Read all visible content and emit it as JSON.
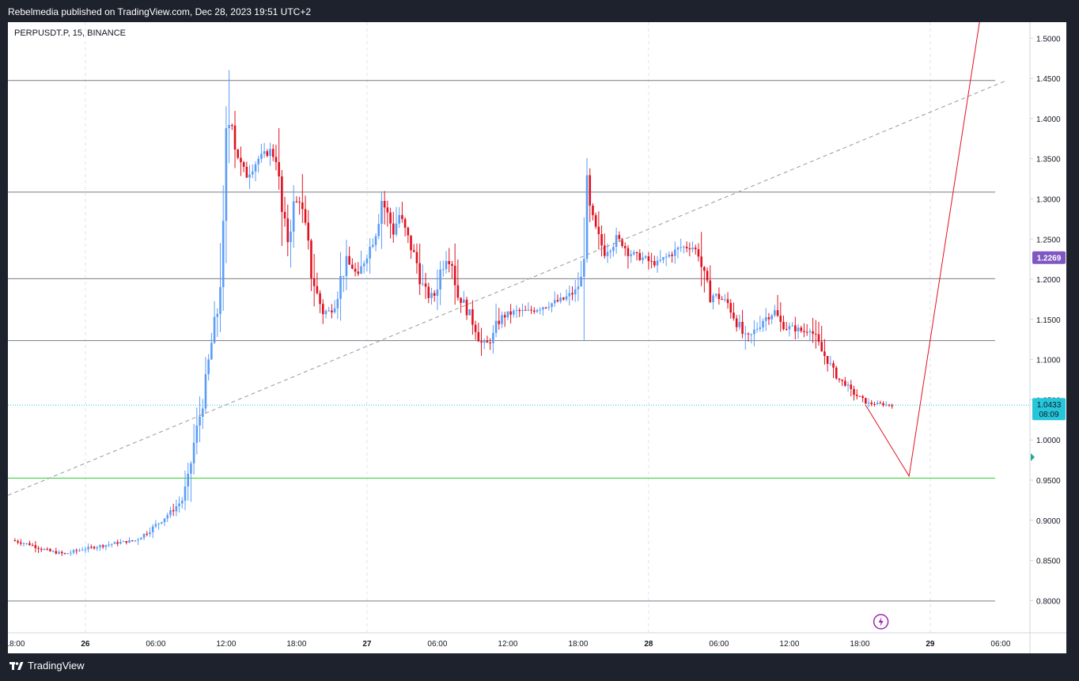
{
  "header": {
    "publisher_text": "Rebelmedia published on TradingView.com, Dec 28, 2023 19:51 UTC+2"
  },
  "footer": {
    "brand": "TradingView",
    "logo_icon": "tradingview-logo-icon"
  },
  "colors": {
    "bull": "#5b9cf6",
    "bear": "#e0111f",
    "line": "#787b86",
    "support": "#2fcf2f",
    "projection": "#e0111f",
    "price_badge": "#26c6da",
    "high_badge": "#7e57c2"
  },
  "chart_data": {
    "type": "candlestick",
    "symbol_label": "PERPUSDT.P, 15, BINANCE",
    "ylim": [
      0.76,
      1.52
    ],
    "y_ticks": [
      "0.8000",
      "0.8500",
      "0.9000",
      "0.9500",
      "1.0000",
      "1.0500",
      "1.1000",
      "1.1500",
      "1.2000",
      "1.2500",
      "1.3000",
      "1.3500",
      "1.4000",
      "1.4500",
      "1.5000"
    ],
    "x_ticks": [
      {
        "label": "18:00",
        "t": 0
      },
      {
        "label": "26",
        "t": 6
      },
      {
        "label": "06:00",
        "t": 12
      },
      {
        "label": "12:00",
        "t": 18
      },
      {
        "label": "18:00",
        "t": 24
      },
      {
        "label": "27",
        "t": 30
      },
      {
        "label": "06:00",
        "t": 36
      },
      {
        "label": "12:00",
        "t": 42
      },
      {
        "label": "18:00",
        "t": 48
      },
      {
        "label": "28",
        "t": 54
      },
      {
        "label": "06:00",
        "t": 60
      },
      {
        "label": "12:00",
        "t": 66
      },
      {
        "label": "18:00",
        "t": 72
      },
      {
        "label": "29",
        "t": 78
      },
      {
        "label": "06:00",
        "t": 84
      }
    ],
    "x_range_hours": [
      -0.6,
      86.5
    ],
    "last_time_hours": 74.8,
    "anchor_points": [
      [
        0,
        0.875
      ],
      [
        1.5,
        0.87
      ],
      [
        3,
        0.862
      ],
      [
        4.5,
        0.858
      ],
      [
        6,
        0.864
      ],
      [
        7.5,
        0.868
      ],
      [
        9,
        0.872
      ],
      [
        10.5,
        0.875
      ],
      [
        11.5,
        0.885
      ],
      [
        12.5,
        0.897
      ],
      [
        13.5,
        0.91
      ],
      [
        14.5,
        0.925
      ],
      [
        15,
        0.95
      ],
      [
        15.5,
        0.995
      ],
      [
        16,
        1.03
      ],
      [
        16.5,
        1.07
      ],
      [
        17,
        1.12
      ],
      [
        17.5,
        1.16
      ],
      [
        18,
        1.25
      ],
      [
        18.3,
        1.37
      ],
      [
        18.6,
        1.41
      ],
      [
        19,
        1.37
      ],
      [
        19.5,
        1.34
      ],
      [
        20,
        1.33
      ],
      [
        21,
        1.35
      ],
      [
        22,
        1.36
      ],
      [
        22.5,
        1.35
      ],
      [
        23,
        1.28
      ],
      [
        23.5,
        1.25
      ],
      [
        24,
        1.29
      ],
      [
        24.5,
        1.3
      ],
      [
        25,
        1.26
      ],
      [
        25.5,
        1.21
      ],
      [
        26,
        1.18
      ],
      [
        26.5,
        1.16
      ],
      [
        27,
        1.16
      ],
      [
        27.5,
        1.17
      ],
      [
        28,
        1.2
      ],
      [
        28.5,
        1.22
      ],
      [
        29,
        1.215
      ],
      [
        29.5,
        1.2
      ],
      [
        30,
        1.225
      ],
      [
        30.5,
        1.24
      ],
      [
        31,
        1.26
      ],
      [
        31.5,
        1.3
      ],
      [
        32,
        1.28
      ],
      [
        32.5,
        1.26
      ],
      [
        33,
        1.28
      ],
      [
        33.5,
        1.26
      ],
      [
        34,
        1.24
      ],
      [
        34.5,
        1.22
      ],
      [
        35,
        1.19
      ],
      [
        35.5,
        1.18
      ],
      [
        36,
        1.18
      ],
      [
        36.5,
        1.21
      ],
      [
        37,
        1.23
      ],
      [
        37.5,
        1.22
      ],
      [
        38,
        1.18
      ],
      [
        38.5,
        1.17
      ],
      [
        39,
        1.155
      ],
      [
        39.5,
        1.14
      ],
      [
        40,
        1.12
      ],
      [
        40.5,
        1.12
      ],
      [
        41,
        1.13
      ],
      [
        41.5,
        1.15
      ],
      [
        42,
        1.155
      ],
      [
        43,
        1.16
      ],
      [
        44,
        1.16
      ],
      [
        45,
        1.165
      ],
      [
        46,
        1.17
      ],
      [
        47,
        1.175
      ],
      [
        48,
        1.185
      ],
      [
        48.5,
        1.2
      ],
      [
        49,
        1.3
      ],
      [
        49.5,
        1.27
      ],
      [
        50,
        1.25
      ],
      [
        50.5,
        1.235
      ],
      [
        51,
        1.24
      ],
      [
        51.5,
        1.25
      ],
      [
        52,
        1.245
      ],
      [
        52.5,
        1.235
      ],
      [
        53,
        1.23
      ],
      [
        54,
        1.225
      ],
      [
        54.5,
        1.22
      ],
      [
        55,
        1.22
      ],
      [
        56,
        1.23
      ],
      [
        57,
        1.24
      ],
      [
        58,
        1.24
      ],
      [
        58.5,
        1.232
      ],
      [
        59,
        1.2
      ],
      [
        59.5,
        1.18
      ],
      [
        60,
        1.18
      ],
      [
        61,
        1.17
      ],
      [
        61.5,
        1.155
      ],
      [
        62,
        1.14
      ],
      [
        62.5,
        1.125
      ],
      [
        63,
        1.13
      ],
      [
        63.5,
        1.14
      ],
      [
        64,
        1.15
      ],
      [
        64.5,
        1.155
      ],
      [
        65,
        1.16
      ],
      [
        65.5,
        1.145
      ],
      [
        66,
        1.14
      ],
      [
        66.5,
        1.14
      ],
      [
        67,
        1.137
      ],
      [
        67.5,
        1.135
      ],
      [
        68,
        1.14
      ],
      [
        68.5,
        1.125
      ],
      [
        69,
        1.11
      ],
      [
        69.5,
        1.1
      ],
      [
        70,
        1.085
      ],
      [
        70.5,
        1.075
      ],
      [
        71,
        1.07
      ],
      [
        71.5,
        1.06
      ],
      [
        72,
        1.055
      ],
      [
        72.5,
        1.05
      ],
      [
        73,
        1.045
      ],
      [
        73.5,
        1.045
      ],
      [
        74,
        1.045
      ],
      [
        74.8,
        1.0433
      ]
    ],
    "price_lines": [
      1.4474,
      1.3085,
      1.2007,
      1.1236,
      0.7995
    ],
    "support_level": 0.9525,
    "last_price": {
      "value": 1.0433,
      "label": "1.0433",
      "countdown": "08:09"
    },
    "high_marker": {
      "value": 1.2269,
      "label": "1.2269"
    },
    "trendline": {
      "from": [
        -0.6,
        0.931
      ],
      "to": [
        84.5,
        1.4474
      ]
    },
    "projection": [
      [
        72.5,
        1.0433
      ],
      [
        76.2,
        0.955
      ],
      [
        82.2,
        1.52
      ]
    ],
    "marker_icon": "lightning-icon"
  }
}
